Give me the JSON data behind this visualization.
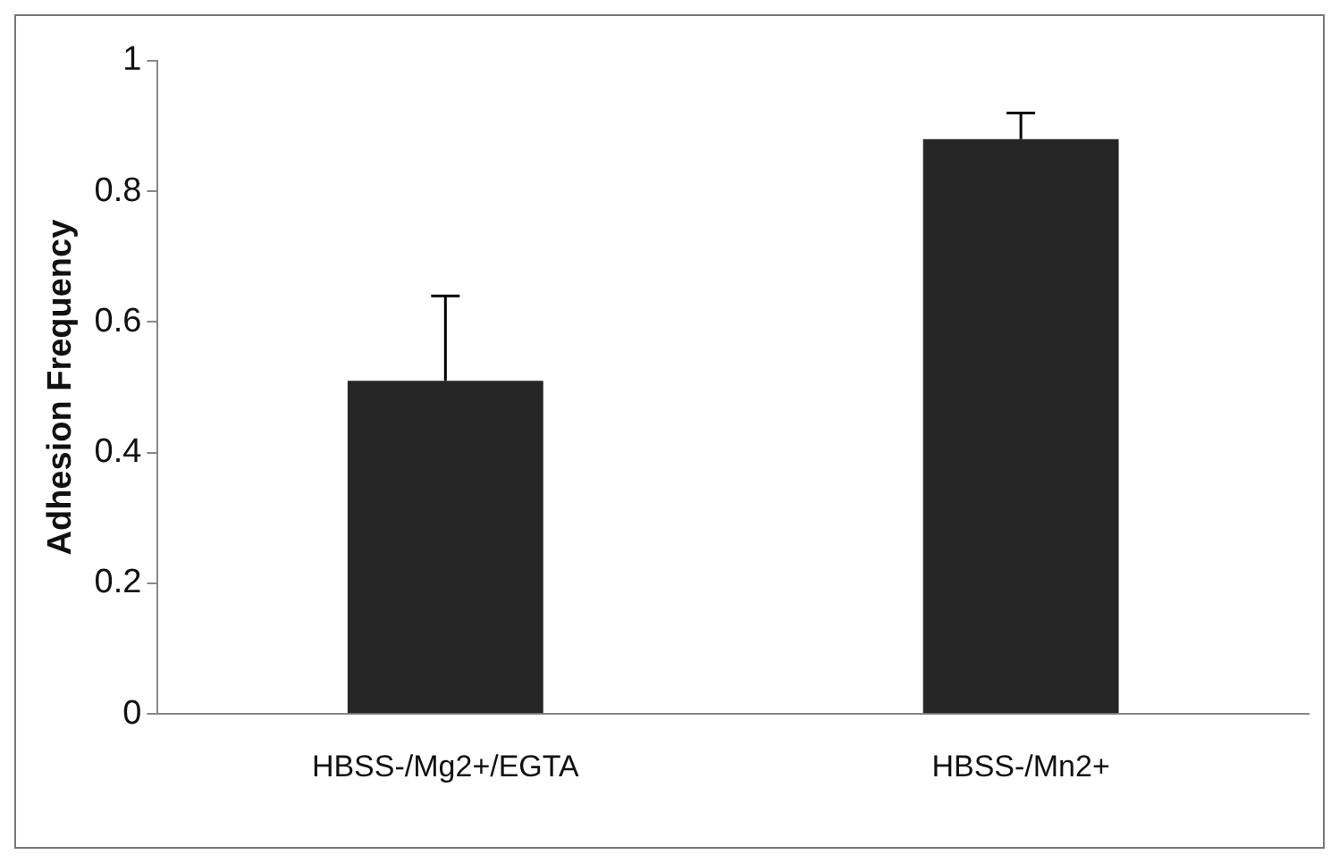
{
  "chart_data": {
    "type": "bar",
    "ylabel": "Adhesion Frequency",
    "categories": [
      "HBSS-/Mg2+/EGTA",
      "HBSS-/Mn2+"
    ],
    "values": [
      0.51,
      0.88
    ],
    "color": "#262626",
    "errors": [
      [
        0.51,
        0.64
      ],
      [
        0.88,
        0.92
      ]
    ],
    "ylim": [
      0,
      1
    ],
    "yticks": [
      0,
      0.2,
      0.4,
      0.6,
      0.8,
      1
    ],
    "grid": false,
    "legend": false
  }
}
